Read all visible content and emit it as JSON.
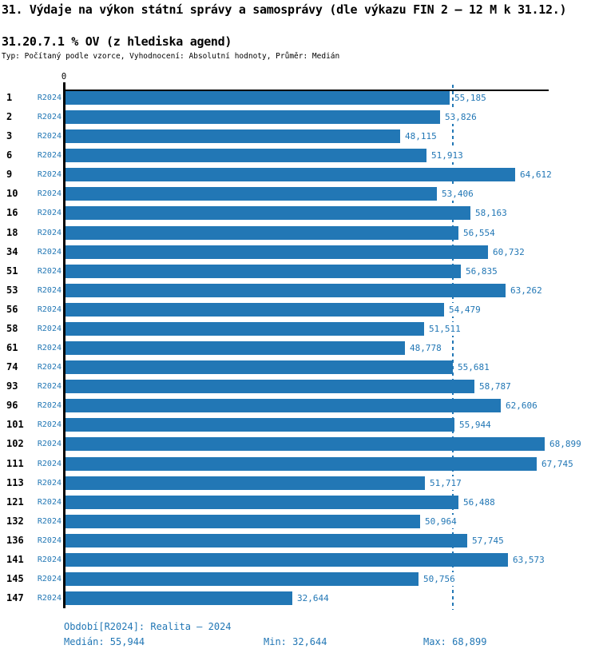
{
  "header": {
    "title": "31. Výdaje na výkon státní správy a samosprávy (dle výkazu FIN 2 – 12 M k 31.12.)",
    "subtitle": "31.20.7.1 % OV (z hlediska agend)",
    "meta": "Typ: Počítaný podle vzorce, Vyhodnocení: Absolutní hodnoty, Průměr: Medián"
  },
  "chart_data": {
    "type": "bar",
    "orientation": "horizontal",
    "title": "31.20.7.1 % OV (z hlediska agend)",
    "axis_zero_label": "0",
    "series_label": "R2024",
    "categories": [
      "1",
      "2",
      "3",
      "6",
      "9",
      "10",
      "16",
      "18",
      "34",
      "51",
      "53",
      "56",
      "58",
      "61",
      "74",
      "93",
      "96",
      "101",
      "102",
      "111",
      "113",
      "121",
      "132",
      "136",
      "141",
      "145",
      "147"
    ],
    "values": [
      55185,
      53826,
      48115,
      51913,
      64612,
      53406,
      58163,
      56554,
      60732,
      56835,
      63262,
      54479,
      51511,
      48778,
      55681,
      58787,
      62606,
      55944,
      68899,
      67745,
      51717,
      56488,
      50964,
      57745,
      63573,
      50756,
      32644
    ],
    "xlim": [
      0,
      68899
    ],
    "median": 55944,
    "min": 32644,
    "max": 68899,
    "median_line": true,
    "grid": false,
    "value_labels": true,
    "legend_position": "none"
  },
  "footer": {
    "period": "Období[R2024]: Realita – 2024",
    "median": "Medián: 55,944",
    "min": "Min: 32,644",
    "max": "Max: 68,899"
  },
  "colors": {
    "bar": "#2277b5",
    "blue_text": "#2277b5",
    "axis": "#000000",
    "background": "#ffffff"
  }
}
